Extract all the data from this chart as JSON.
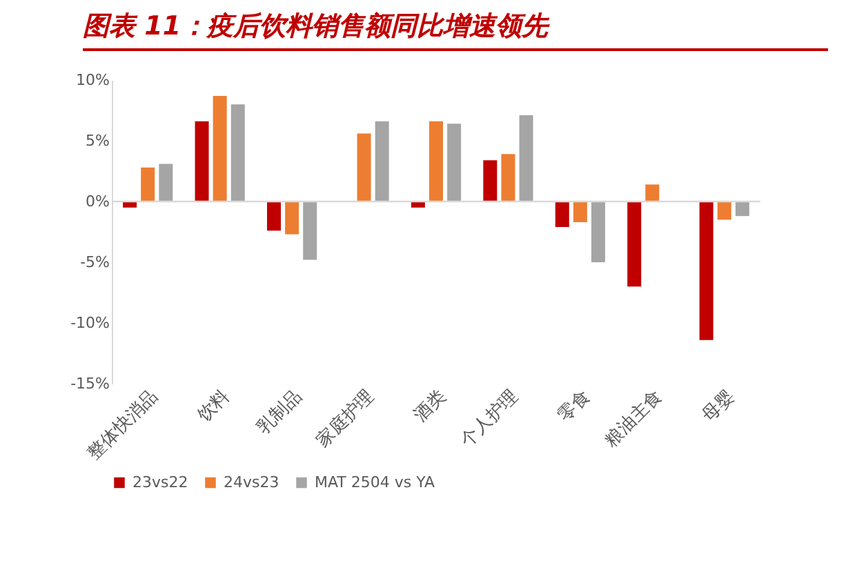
{
  "chart_data": {
    "type": "bar",
    "title": "图表 11：疫后饮料销售额同比增速领先",
    "categories": [
      "整体快消品",
      "饮料",
      "乳制品",
      "家庭护理",
      "酒类",
      "个人护理",
      "零食",
      "粮油主食",
      "母婴"
    ],
    "series": [
      {
        "name": "23vs22",
        "color": "#c00000",
        "values": [
          -0.5,
          6.6,
          -2.4,
          null,
          -0.5,
          3.4,
          -2.1,
          -7.0,
          -11.4
        ]
      },
      {
        "name": "24vs23",
        "color": "#ed7d31",
        "values": [
          2.8,
          8.7,
          -2.7,
          5.6,
          6.6,
          3.9,
          -1.7,
          1.4,
          -1.5
        ]
      },
      {
        "name": "MAT 2504 vs YA",
        "color": "#a5a5a5",
        "values": [
          3.1,
          8.0,
          -4.8,
          6.6,
          6.4,
          7.1,
          -5.0,
          null,
          -1.2
        ]
      }
    ],
    "ylim": [
      -15,
      10
    ],
    "yticks": [
      {
        "value": -15,
        "label": "-15%"
      },
      {
        "value": -10,
        "label": "-10%"
      },
      {
        "value": -5,
        "label": "-5%"
      },
      {
        "value": 0,
        "label": "0%"
      },
      {
        "value": 5,
        "label": "5%"
      },
      {
        "value": 10,
        "label": "10%"
      }
    ],
    "ref_lines": [
      {
        "axis": "y",
        "value": 0,
        "color": "#d9d9d9"
      }
    ],
    "grid": false,
    "legend": "bottom"
  }
}
